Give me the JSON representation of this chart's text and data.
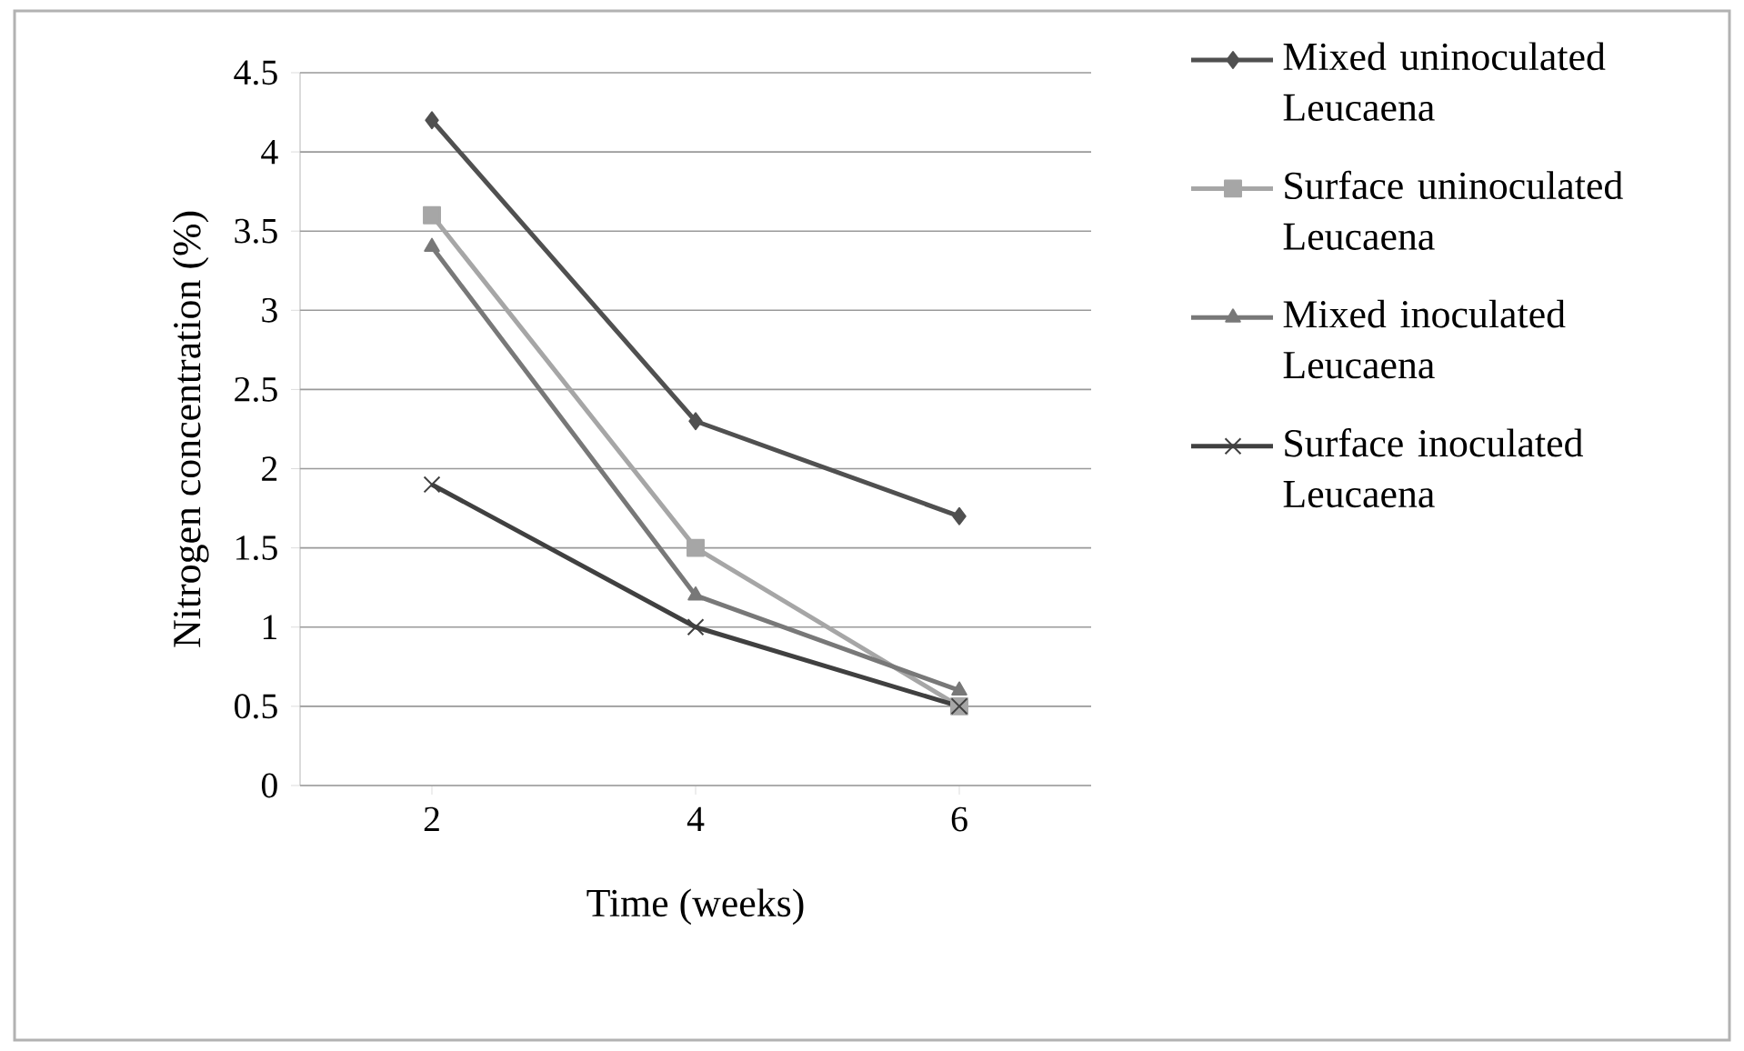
{
  "chart_data": {
    "type": "line",
    "xlabel": "Time (weeks)",
    "ylabel": "Nitrogen concentration (%)",
    "categories": [
      "2",
      "4",
      "6"
    ],
    "series": [
      {
        "name": "Mixed uninoculated Leucaena",
        "color": "#505050",
        "marker": "diamond",
        "values": [
          4.2,
          2.3,
          1.7
        ]
      },
      {
        "name": "Surface uninoculated Leucaena",
        "color": "#a6a6a6",
        "marker": "square",
        "values": [
          3.6,
          1.5,
          0.5
        ]
      },
      {
        "name": "Mixed inoculated Leucaena",
        "color": "#787878",
        "marker": "triangle",
        "values": [
          3.4,
          1.2,
          0.6
        ]
      },
      {
        "name": "Surface inoculated Leucaena",
        "color": "#404040",
        "marker": "cross",
        "values": [
          1.9,
          1.0,
          0.5
        ]
      }
    ],
    "ylim": [
      0,
      4.5
    ],
    "yticks": [
      0,
      0.5,
      1,
      1.5,
      2,
      2.5,
      3,
      3.5,
      4,
      4.5
    ],
    "grid": "y",
    "legend": "right"
  }
}
